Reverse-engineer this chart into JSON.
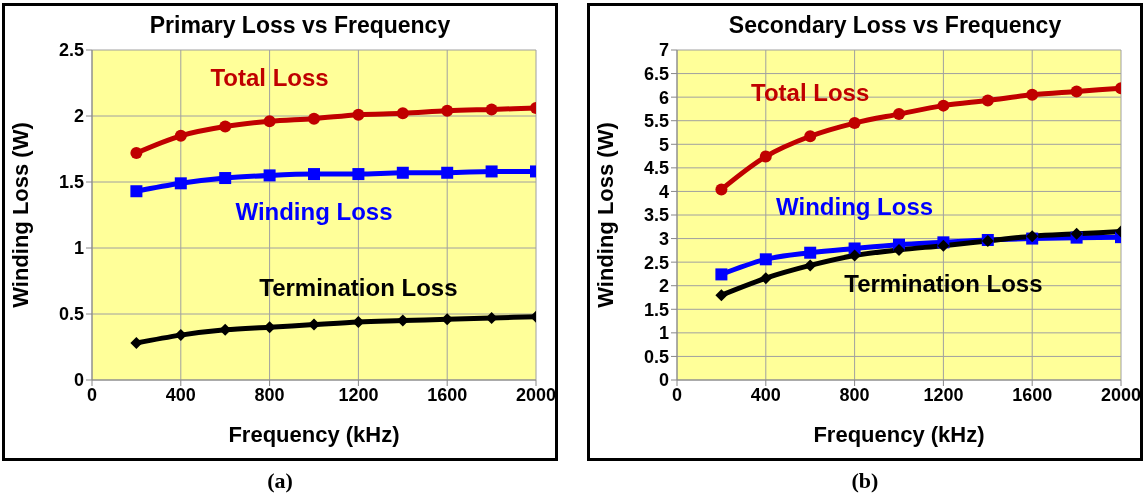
{
  "chart_data": [
    {
      "type": "line",
      "title": "Primary Loss vs Frequency",
      "xlabel": "Frequency (kHz)",
      "ylabel": "Winding Loss (W)",
      "x": [
        200,
        400,
        600,
        800,
        1000,
        1200,
        1400,
        1600,
        1800,
        2000
      ],
      "xlim": [
        0,
        2000
      ],
      "xticks": [
        0,
        400,
        800,
        1200,
        1600,
        2000
      ],
      "ylim": [
        0,
        2.5
      ],
      "yticks": [
        0,
        0.5,
        1,
        1.5,
        2,
        2.5
      ],
      "grid": true,
      "annotations": [
        "(a)"
      ],
      "series": [
        {
          "name": "Total Loss",
          "color": "#c00000",
          "marker": "circle",
          "values": [
            1.72,
            1.85,
            1.92,
            1.96,
            1.98,
            2.01,
            2.02,
            2.04,
            2.05,
            2.06
          ]
        },
        {
          "name": "Winding Loss",
          "color": "#0000ff",
          "marker": "square",
          "values": [
            1.43,
            1.49,
            1.53,
            1.55,
            1.56,
            1.56,
            1.57,
            1.57,
            1.58,
            1.58
          ]
        },
        {
          "name": "Termination Loss",
          "color": "#000000",
          "marker": "diamond",
          "values": [
            0.28,
            0.34,
            0.38,
            0.4,
            0.42,
            0.44,
            0.45,
            0.46,
            0.47,
            0.48
          ]
        }
      ]
    },
    {
      "type": "line",
      "title": "Secondary Loss vs Frequency",
      "xlabel": "Frequency (kHz)",
      "ylabel": "Winding Loss (W)",
      "x": [
        200,
        400,
        600,
        800,
        1000,
        1200,
        1400,
        1600,
        1800,
        2000
      ],
      "xlim": [
        0,
        2000
      ],
      "xticks": [
        0,
        400,
        800,
        1200,
        1600,
        2000
      ],
      "ylim": [
        0,
        7
      ],
      "yticks": [
        0,
        0.5,
        1,
        1.5,
        2,
        2.5,
        3,
        3.5,
        4,
        4.5,
        5,
        5.5,
        6,
        6.5,
        7
      ],
      "grid": true,
      "annotations": [
        "(b)"
      ],
      "series": [
        {
          "name": "Total Loss",
          "color": "#c00000",
          "marker": "circle",
          "values": [
            4.04,
            4.74,
            5.17,
            5.45,
            5.64,
            5.82,
            5.93,
            6.05,
            6.12,
            6.19
          ]
        },
        {
          "name": "Winding Loss",
          "color": "#0000ff",
          "marker": "square",
          "values": [
            2.24,
            2.56,
            2.7,
            2.79,
            2.87,
            2.92,
            2.97,
            3.0,
            3.02,
            3.03
          ]
        },
        {
          "name": "Termination Loss",
          "color": "#000000",
          "marker": "diamond",
          "values": [
            1.8,
            2.16,
            2.43,
            2.64,
            2.76,
            2.85,
            2.95,
            3.05,
            3.1,
            3.15
          ]
        }
      ]
    }
  ]
}
